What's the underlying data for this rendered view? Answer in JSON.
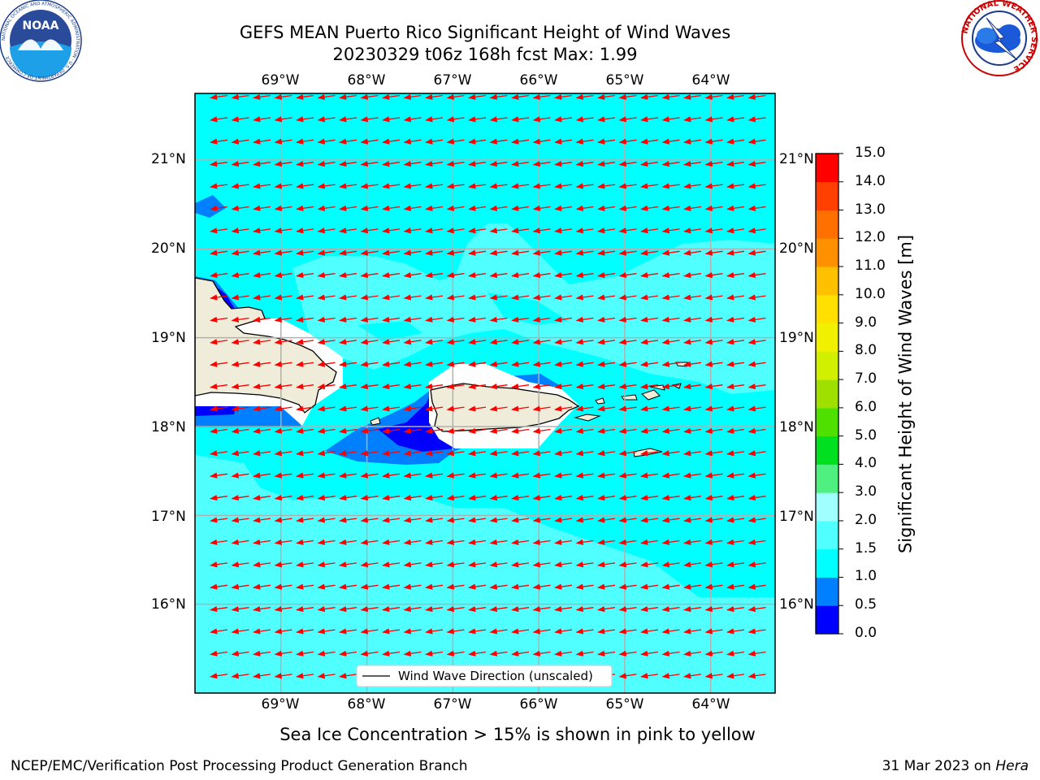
{
  "header": {
    "title_line1": "GEFS MEAN Puerto Rico Significant Height of Wind Waves",
    "title_line2": "20230329 t06z 168h fcst   Max: 1.99"
  },
  "logos": {
    "noaa": {
      "label": "NOAA",
      "ring_text": "NATIONAL OCEANIC AND ATMOSPHERIC ADMINISTRATION · U.S. DEPARTMENT OF COMMERCE"
    },
    "nws": {
      "ring_text": "NATIONAL WEATHER SERVICE"
    }
  },
  "map": {
    "lon_labels": [
      "69°W",
      "68°W",
      "67°W",
      "66°W",
      "65°W",
      "64°W"
    ],
    "lat_labels": [
      "21°N",
      "20°N",
      "19°N",
      "18°N",
      "17°N",
      "16°N"
    ],
    "lon_range": [
      -70.0,
      -63.25
    ],
    "lat_range": [
      15.0,
      21.75
    ],
    "grid": true,
    "ocean_color": "#00ffff",
    "land_color": "#efedda",
    "arrow_color": "#ff0000",
    "arrow_direction": "toward west-southwest",
    "legend_label": "Wind Wave Direction (unscaled)",
    "legend_placement": "bottom-center"
  },
  "colorbar": {
    "title": "Significant Height of Wind Waves [m]",
    "ticks": [
      "0.0",
      "0.5",
      "1.0",
      "1.5",
      "2.0",
      "3.0",
      "4.0",
      "5.0",
      "6.0",
      "7.0",
      "8.0",
      "9.0",
      "10.0",
      "11.0",
      "12.0",
      "13.0",
      "14.0",
      "15.0"
    ],
    "colors": [
      "#0000ff",
      "#0080ff",
      "#00ffff",
      "#50ffff",
      "#a0ffff",
      "#50f080",
      "#00e020",
      "#50e000",
      "#a0e000",
      "#d0f000",
      "#f0f000",
      "#ffe000",
      "#ffc000",
      "#ff9000",
      "#ff7000",
      "#ff4000",
      "#ff0000"
    ]
  },
  "note": "Sea Ice Concentration > 15% is shown in pink to yellow",
  "footer": {
    "left": "NCEP/EMC/Verification Post Processing Product Generation Branch",
    "right_date": "31 Mar 2023 on ",
    "right_host": "Hera"
  }
}
